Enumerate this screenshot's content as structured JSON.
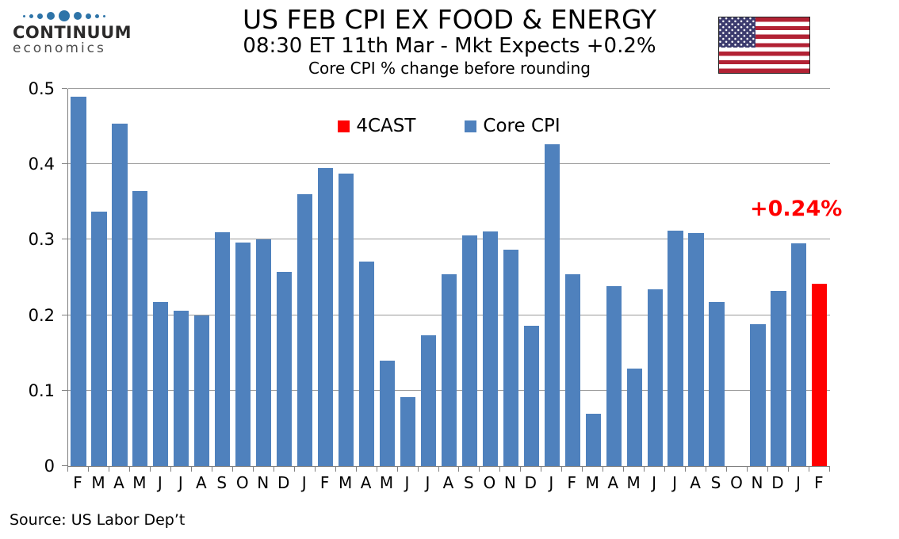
{
  "logo": {
    "brand": "CONTINUUM",
    "subbrand": "economics",
    "dot_color": "#2E74A8"
  },
  "header": {
    "title": "US FEB CPI EX FOOD & ENERGY",
    "subtitle": "08:30 ET 11th Mar - Mkt Expects +0.2%",
    "note": "Core CPI % change before rounding"
  },
  "legend": [
    {
      "label": "4CAST",
      "color": "#FF0000"
    },
    {
      "label": "Core CPI",
      "color": "#4F81BD"
    }
  ],
  "annotation": {
    "text": "+0.24%",
    "color": "#FF0000"
  },
  "source": "Source: US Labor Dep’t",
  "chart_data": {
    "type": "bar",
    "title": "US FEB CPI EX FOOD & ENERGY",
    "subtitle": "08:30 ET 11th Mar - Mkt Expects +0.2%",
    "note": "Core CPI % change before rounding",
    "xlabel": "",
    "ylabel": "",
    "ylim": [
      0,
      0.5
    ],
    "yticks": [
      0,
      0.1,
      0.2,
      0.3,
      0.4,
      0.5
    ],
    "grid": true,
    "legend_position": "top-center",
    "categories": [
      "F",
      "M",
      "A",
      "M",
      "J",
      "J",
      "A",
      "S",
      "O",
      "N",
      "D",
      "J",
      "F",
      "M",
      "A",
      "M",
      "J",
      "J",
      "A",
      "S",
      "O",
      "N",
      "D",
      "J",
      "F",
      "M",
      "A",
      "M",
      "J",
      "J",
      "A",
      "S",
      "O",
      "N",
      "D",
      "J",
      "F"
    ],
    "series": [
      {
        "name": "Core CPI",
        "color": "#4F81BD",
        "values": [
          0.489,
          0.337,
          0.454,
          0.364,
          0.217,
          0.206,
          0.2,
          0.31,
          0.296,
          0.3,
          0.257,
          0.36,
          0.395,
          0.388,
          0.271,
          0.14,
          0.091,
          0.173,
          0.254,
          0.306,
          0.311,
          0.287,
          0.186,
          0.426,
          0.254,
          0.069,
          0.238,
          0.129,
          0.234,
          0.312,
          0.309,
          0.217,
          null,
          0.188,
          0.232,
          0.295,
          null
        ]
      },
      {
        "name": "4CAST",
        "color": "#FF0000",
        "values": [
          null,
          null,
          null,
          null,
          null,
          null,
          null,
          null,
          null,
          null,
          null,
          null,
          null,
          null,
          null,
          null,
          null,
          null,
          null,
          null,
          null,
          null,
          null,
          null,
          null,
          null,
          null,
          null,
          null,
          null,
          null,
          null,
          null,
          null,
          null,
          null,
          0.242
        ]
      }
    ]
  }
}
